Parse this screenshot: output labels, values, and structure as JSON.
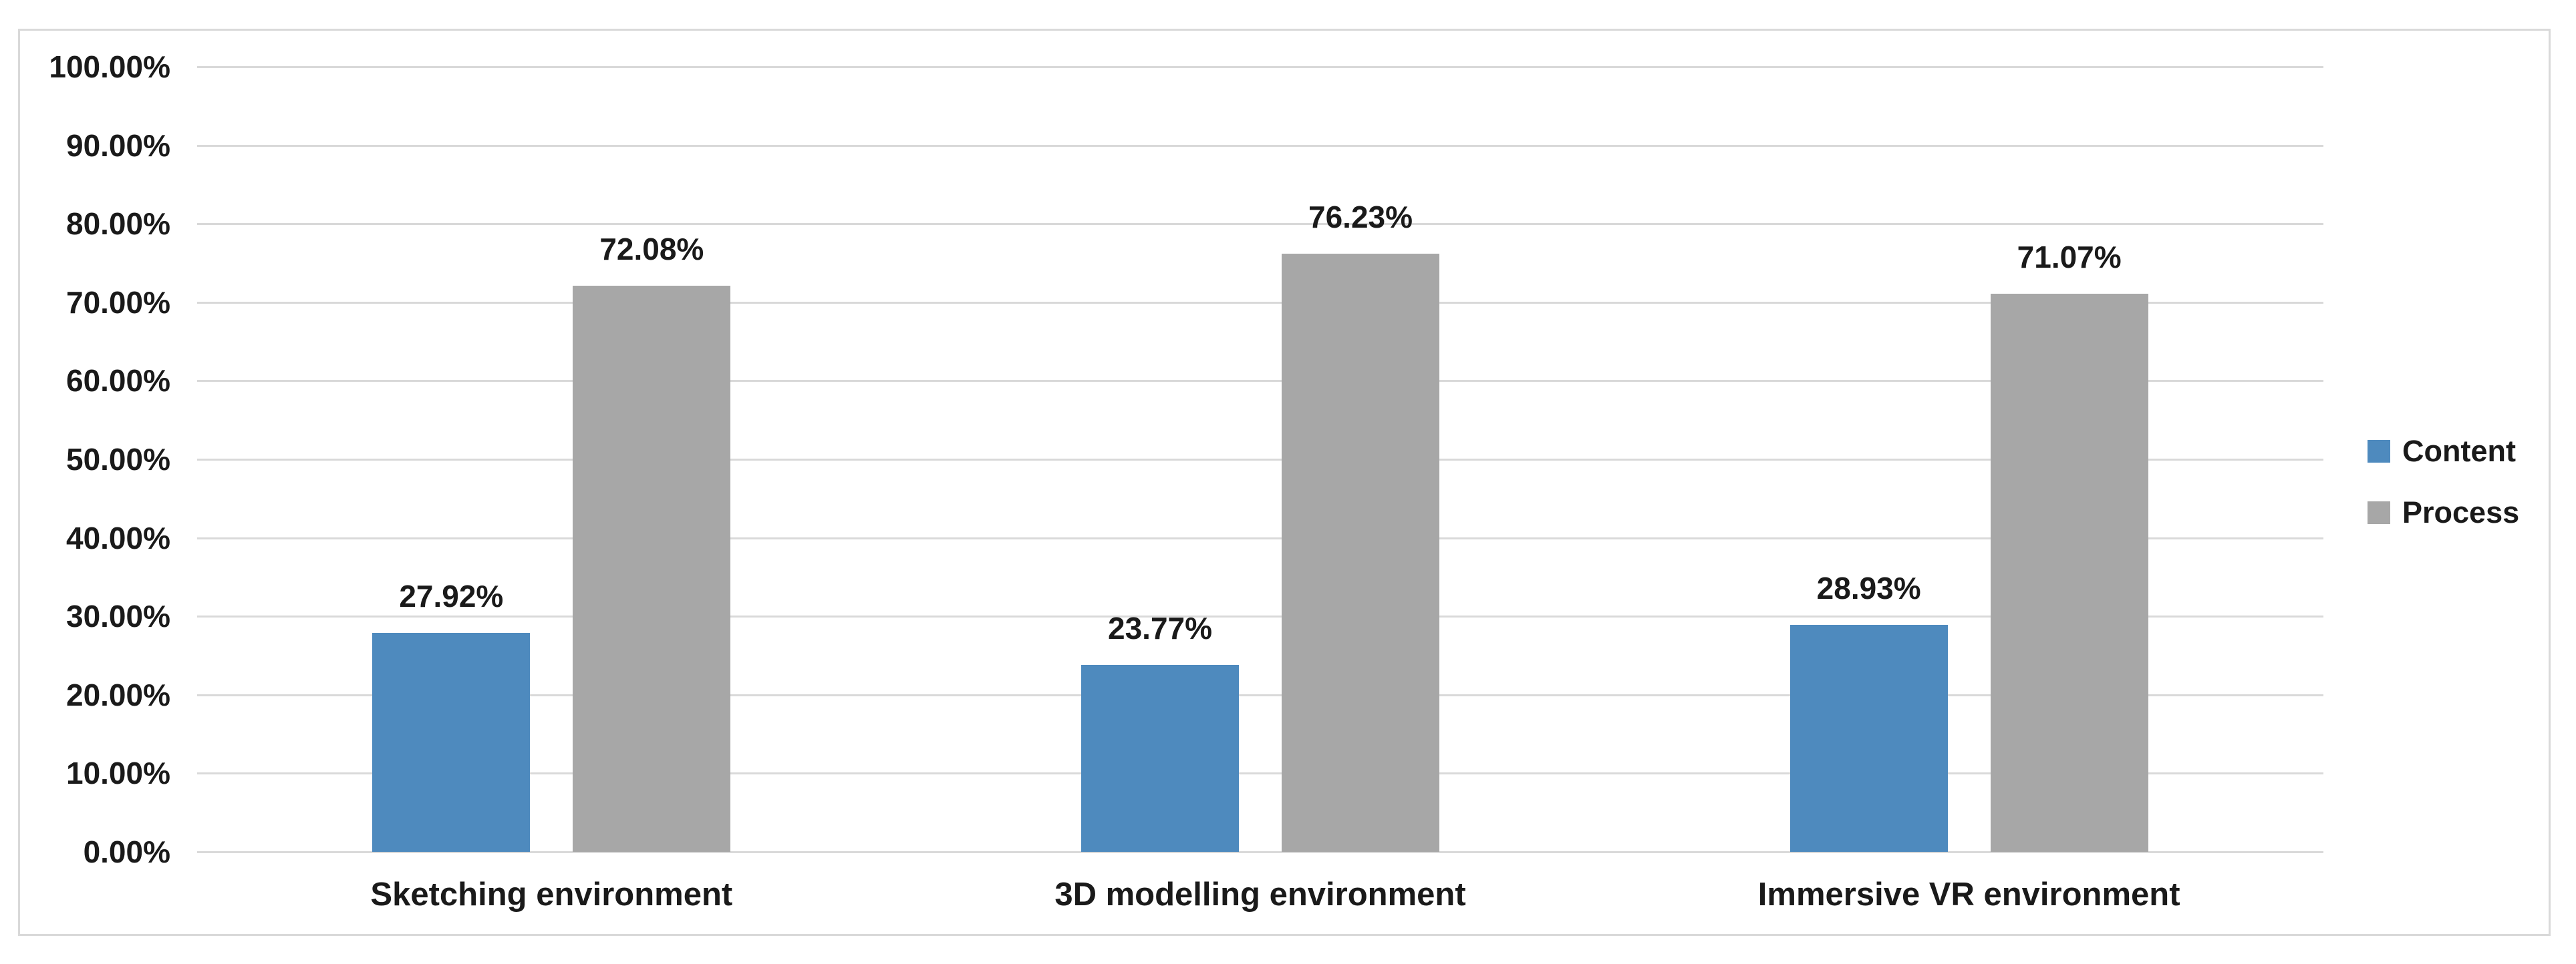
{
  "figure": {
    "background_color": "#FFFFFF",
    "border_color": "#D9D9D9",
    "gridline_color": "#D9D9D9",
    "text_color": "#1A1A1A"
  },
  "chart_data": {
    "type": "bar",
    "title": "",
    "xlabel": "",
    "ylabel": "",
    "categories": [
      "Sketching environment",
      "3D modelling environment",
      "Immersive VR environment"
    ],
    "series": [
      {
        "name": "Content",
        "color": "#4E8ABE",
        "values": [
          27.92,
          23.77,
          28.93
        ],
        "labels": [
          "27.92%",
          "23.77%",
          "28.93%"
        ]
      },
      {
        "name": "Process",
        "color": "#A7A7A7",
        "values": [
          72.08,
          76.23,
          71.07
        ],
        "labels": [
          "72.08%",
          "76.23%",
          "71.07%"
        ]
      }
    ],
    "ylim": [
      0,
      100
    ],
    "ytick_values": [
      0,
      10,
      20,
      30,
      40,
      50,
      60,
      70,
      80,
      90,
      100
    ],
    "ytick_labels": [
      "0.00%",
      "10.00%",
      "20.00%",
      "30.00%",
      "40.00%",
      "50.00%",
      "60.00%",
      "70.00%",
      "80.00%",
      "90.00%",
      "100.00%"
    ],
    "grid": true,
    "legend_position": "right",
    "data_labels_shown": true
  }
}
